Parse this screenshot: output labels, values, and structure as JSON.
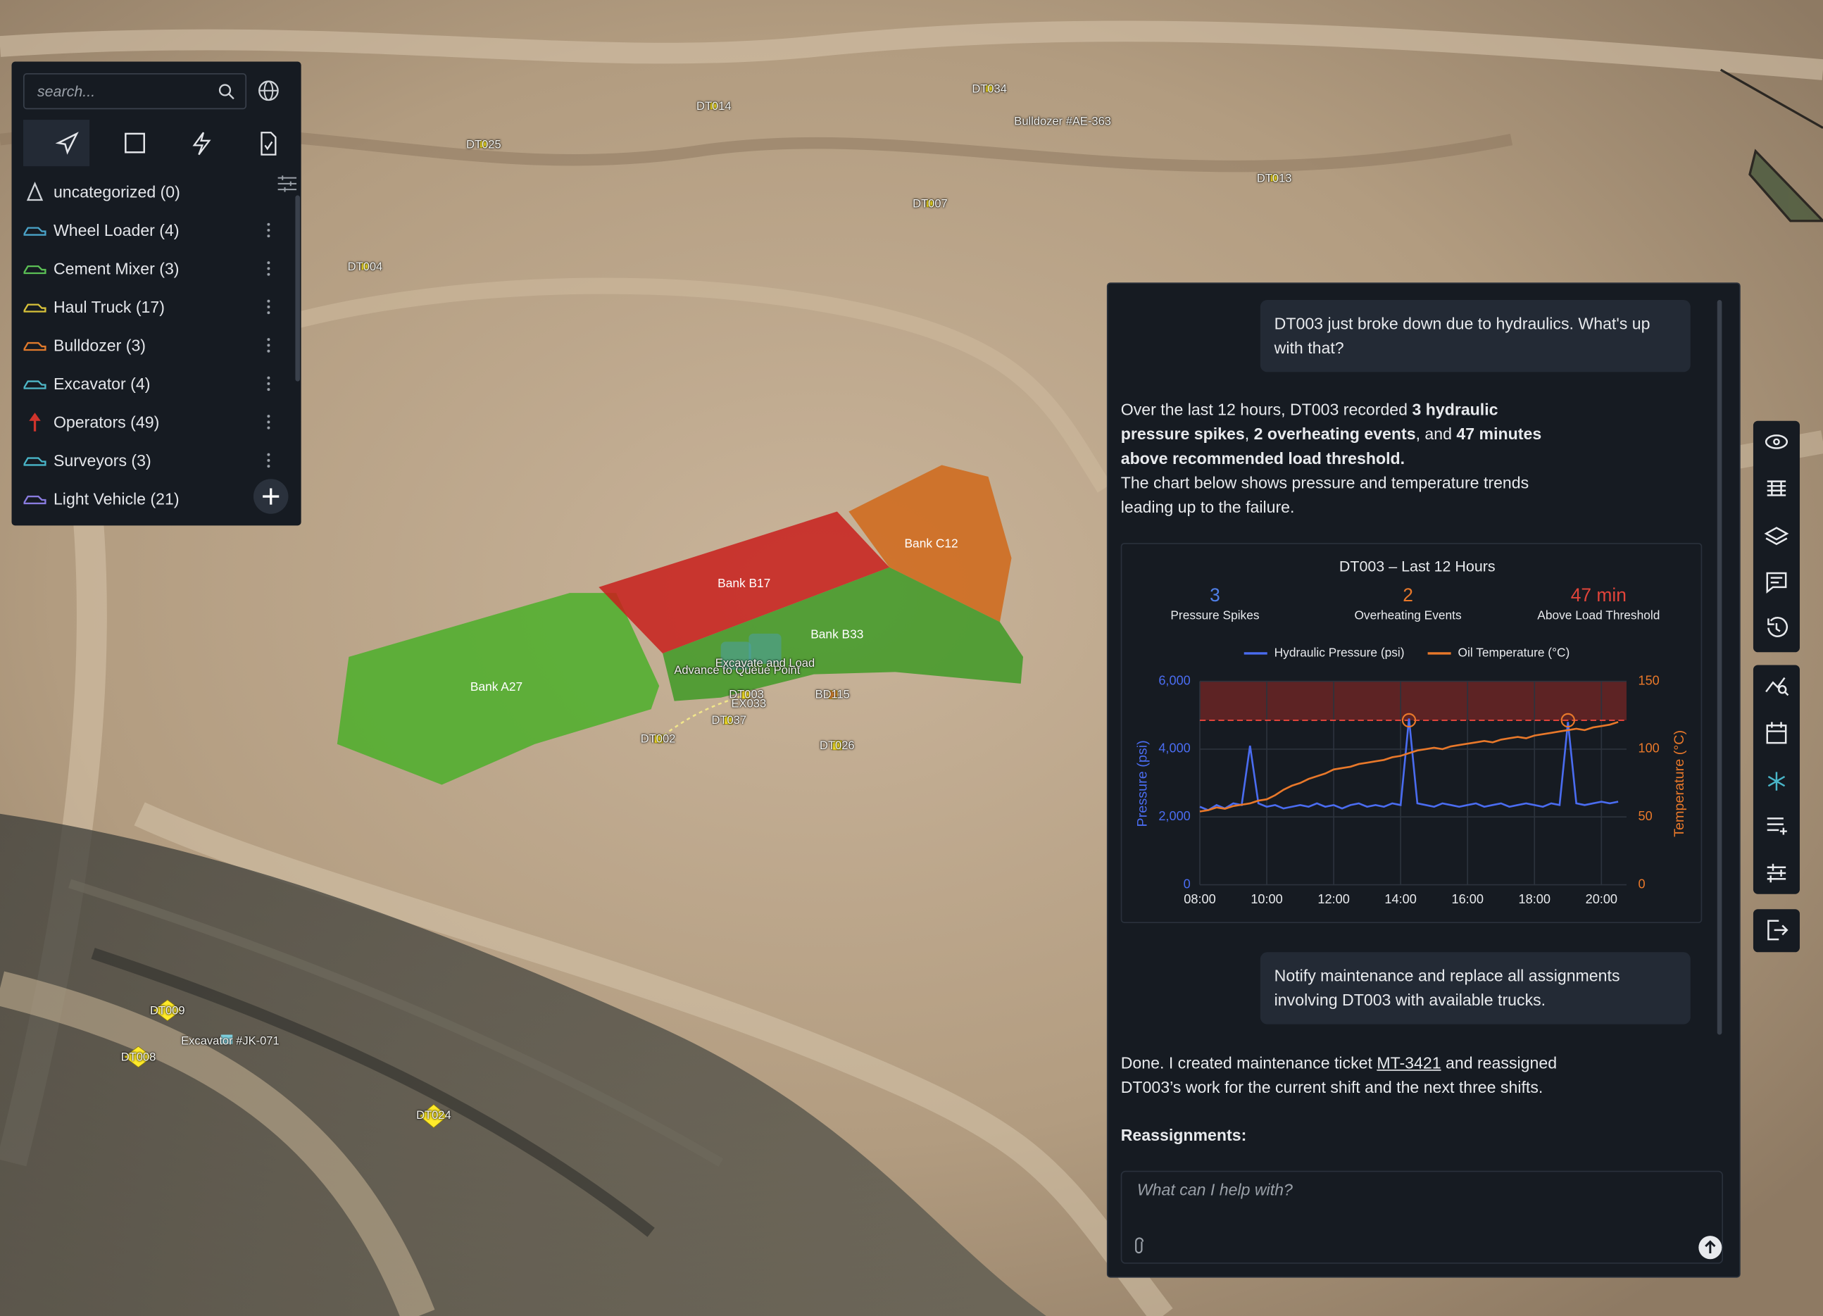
{
  "sidebar": {
    "search_placeholder": "search...",
    "categories": [
      {
        "label": "uncategorized (0)",
        "color": "#cfd3d8"
      },
      {
        "label": "Wheel Loader (4)",
        "color": "#4aa3c8"
      },
      {
        "label": "Cement Mixer (3)",
        "color": "#5bbf55"
      },
      {
        "label": "Haul Truck (17)",
        "color": "#d8c23a"
      },
      {
        "label": "Bulldozer (3)",
        "color": "#e07a2c"
      },
      {
        "label": "Excavator (4)",
        "color": "#4fb8c8"
      },
      {
        "label": "Operators (49)",
        "color": "#d0342c"
      },
      {
        "label": "Surveyors (3)",
        "color": "#49b6c9"
      },
      {
        "label": "Light Vehicle (21)",
        "color": "#8a7ce0"
      }
    ]
  },
  "map_labels": [
    "DT014",
    "DT034",
    "Bulldozer #AE-363",
    "DT025",
    "DT013",
    "DT007",
    "DT004",
    "Bank B17",
    "Bank C12",
    "Bank B33",
    "Bank A27",
    "Advance to Queue Point",
    "Excavate and Load",
    "DT003",
    "EX033",
    "BD115",
    "DT037",
    "DT002",
    "DT026",
    "DT009",
    "Excavator #JK-071",
    "DT008",
    "DT024"
  ],
  "chat": {
    "user_1": "DT003 just broke down due to hydraulics. What's up with that?",
    "reply_1": [
      "Over the last 12 hours, DT003 recorded ",
      "3 hydraulic pressure spikes",
      ", ",
      "2 overheating events",
      ", and ",
      "47 minutes above recommended load threshold.",
      "The chart below shows pressure and temperature trends leading up to the failure."
    ],
    "chart": {
      "type": "line",
      "title": "DT003 – Last 12 Hours",
      "stats": [
        {
          "value": 3,
          "label": "Pressure Spikes",
          "color": "#4f7fe8"
        },
        {
          "value": 2,
          "label": "Overheating Events",
          "color": "#e8782a"
        },
        {
          "value": "47 min",
          "label": "Above Load Threshold",
          "color": "#e0443a"
        }
      ],
      "y_label": "Pressure (psi)",
      "y2_label": "Temperature (°C)",
      "x": [
        8,
        8.25,
        8.5,
        8.75,
        9,
        9.25,
        9.5,
        9.75,
        10,
        10.25,
        10.5,
        10.75,
        11,
        11.25,
        11.5,
        11.75,
        12,
        12.25,
        12.5,
        12.75,
        13,
        13.25,
        13.5,
        13.75,
        14,
        14.25,
        14.5,
        14.75,
        15,
        15.25,
        15.5,
        15.75,
        16,
        16.25,
        16.5,
        16.75,
        17,
        17.25,
        17.5,
        17.75,
        18,
        18.25,
        18.5,
        18.75,
        19,
        19.25,
        19.5,
        19.75,
        20,
        20.25,
        20.5
      ],
      "xlim": [
        8,
        20.75
      ],
      "xticks": [
        {
          "value": 8,
          "label": "08:00"
        },
        {
          "value": 10,
          "label": "10:00"
        },
        {
          "value": 12,
          "label": "12:00"
        },
        {
          "value": 14,
          "label": "14:00"
        },
        {
          "value": 16,
          "label": "16:00"
        },
        {
          "value": 18,
          "label": "18:00"
        },
        {
          "value": 20,
          "label": "20:00"
        }
      ],
      "ylim": [
        0,
        6000
      ],
      "yticks": [
        0,
        {
          "value": 2000,
          "label": "2,000"
        },
        {
          "value": 4000,
          "label": "4,000"
        },
        {
          "value": 6000,
          "label": "6,000"
        }
      ],
      "y2lim": [
        0,
        150
      ],
      "y2ticks": [
        0,
        50,
        100,
        150
      ],
      "threshold": 4850,
      "overheat_events": [
        14.25,
        19
      ],
      "series": [
        {
          "name": "Hydraulic Pressure (psi)",
          "color": "#4a6cf0",
          "values": [
            2300,
            2200,
            2350,
            2250,
            2400,
            2350,
            4100,
            2400,
            2300,
            2350,
            2250,
            2300,
            2350,
            2300,
            2400,
            2300,
            2350,
            2250,
            2350,
            2400,
            2300,
            2350,
            2300,
            2400,
            2350,
            4900,
            2400,
            2350,
            2300,
            2400,
            2350,
            2300,
            2350,
            2400,
            2300,
            2350,
            2400,
            2300,
            2350,
            2400,
            2350,
            2300,
            2400,
            2350,
            4800,
            2400,
            2350,
            2400,
            2450,
            2400,
            2450
          ]
        },
        {
          "name": "Oil Temperature (°C)",
          "color": "#e8782a",
          "axis": "y2",
          "values": [
            54,
            55,
            57,
            56,
            58,
            59,
            60,
            62,
            63,
            66,
            70,
            73,
            75,
            78,
            80,
            82,
            85,
            86,
            87,
            89,
            90,
            91,
            92,
            94,
            95,
            97,
            99,
            100,
            101,
            100,
            102,
            103,
            104,
            105,
            106,
            105,
            107,
            108,
            109,
            108,
            110,
            111,
            112,
            113,
            114,
            115,
            114,
            116,
            117,
            118,
            120
          ]
        }
      ]
    },
    "user_2": "Notify maintenance and replace all assignments involving DT003 with available trucks.",
    "reply_2": [
      "Done. I created maintenance ticket ",
      "MT-3421",
      " and reassigned DT003’s work for the current shift and the next three shifts."
    ],
    "reassignments_heading": "Reassignments:",
    "input_placeholder": "What can I help with?"
  }
}
